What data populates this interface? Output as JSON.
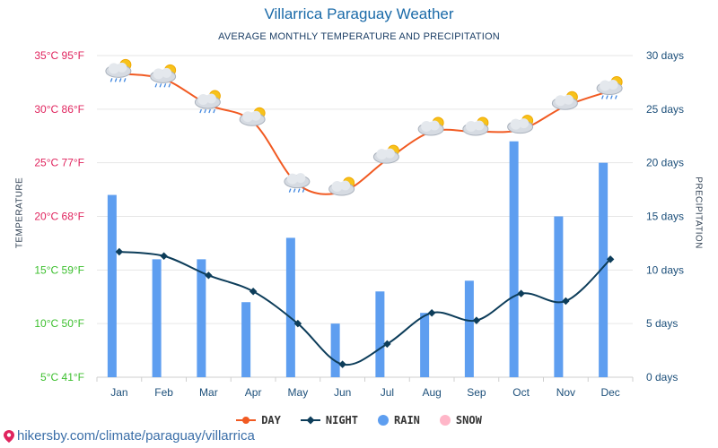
{
  "title": "Villarrica Paraguay Weather",
  "subtitle": "AVERAGE MONTHLY TEMPERATURE AND PRECIPITATION",
  "source": "hikersby.com/climate/paraguay/villarrica",
  "colors": {
    "day": "#f15a22",
    "night": "#0d3d5a",
    "rain": "#5e9ef0",
    "snow": "#ffb6c8",
    "grid": "#e6e6e6",
    "left_axis_warm": "#e0245e",
    "left_axis_cool": "#3cbf2e",
    "right_axis": "#1c4f7a"
  },
  "legend": [
    {
      "key": "day",
      "label": "DAY"
    },
    {
      "key": "night",
      "label": "NIGHT"
    },
    {
      "key": "rain",
      "label": "RAIN"
    },
    {
      "key": "snow",
      "label": "SNOW"
    }
  ],
  "chart_data": {
    "type": "bar+line",
    "categories": [
      "Jan",
      "Feb",
      "Mar",
      "Apr",
      "May",
      "Jun",
      "Jul",
      "Aug",
      "Sep",
      "Oct",
      "Nov",
      "Dec"
    ],
    "ylabel_left": "TEMPERATURE",
    "ylabel_right": "PRECIPITATION",
    "ylim_left": [
      5,
      35
    ],
    "ylim_right": [
      0,
      30
    ],
    "left_ticks": [
      "5°C 41°F",
      "10°C 50°F",
      "15°C 59°F",
      "20°C 68°F",
      "25°C 77°F",
      "30°C 86°F",
      "35°C 95°F"
    ],
    "right_ticks": [
      "0 days",
      "5 days",
      "10 days",
      "15 days",
      "20 days",
      "25 days",
      "30 days"
    ],
    "series": [
      {
        "name": "DAY",
        "unit": "°C",
        "values": [
          33.3,
          32.8,
          30.4,
          28.8,
          23.0,
          22.3,
          25.3,
          27.9,
          27.9,
          28.1,
          30.3,
          31.7
        ],
        "icons": [
          "cloud-sun-rain-icon",
          "cloud-sun-rain-icon",
          "cloud-sun-rain-icon",
          "cloud-sun-icon",
          "cloud-rain-icon",
          "cloud-sun-icon",
          "cloud-sun-icon",
          "cloud-sun-icon",
          "cloud-sun-icon",
          "cloud-sun-icon",
          "cloud-sun-icon",
          "cloud-sun-rain-icon"
        ]
      },
      {
        "name": "NIGHT",
        "unit": "°C",
        "values": [
          16.7,
          16.3,
          14.5,
          13.0,
          10.0,
          6.2,
          8.1,
          11.0,
          10.3,
          12.8,
          12.1,
          16.0
        ]
      },
      {
        "name": "RAIN",
        "unit": "days",
        "values": [
          17,
          11,
          11,
          7,
          13,
          5,
          8,
          6,
          9,
          22,
          15,
          20
        ]
      },
      {
        "name": "SNOW",
        "unit": "days",
        "values": [
          0,
          0,
          0,
          0,
          0,
          0,
          0,
          0,
          0,
          0,
          0,
          0
        ]
      }
    ],
    "grid": true,
    "legend_position": "bottom"
  }
}
